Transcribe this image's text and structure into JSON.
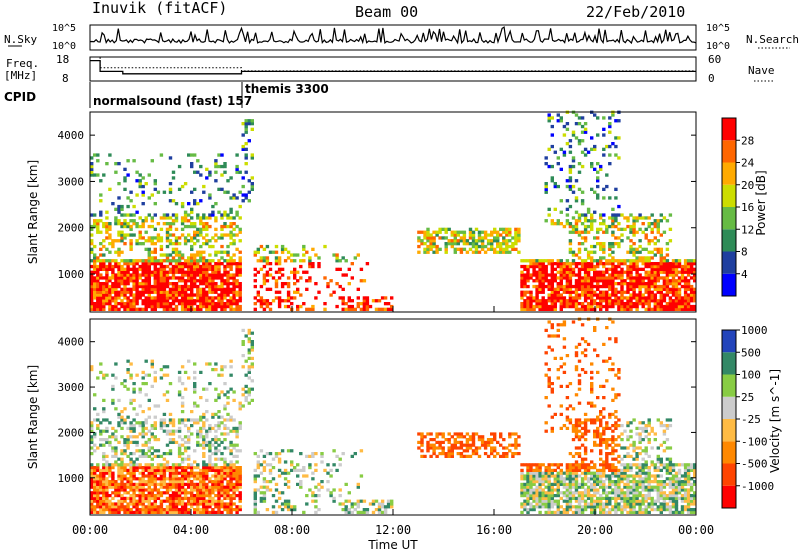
{
  "header": {
    "station": "Inuvik (fitACF)",
    "beam": "Beam 00",
    "date": "22/Feb/2010"
  },
  "colors": {
    "power": [
      "#0000ff",
      "#1f3f9f",
      "#2e8b57",
      "#66bb44",
      "#ccdd00",
      "#ffaa00",
      "#ff6600",
      "#ff0000"
    ],
    "velocity": [
      "#ff0000",
      "#ff4400",
      "#ff8800",
      "#ffbb44",
      "#cccccc",
      "#88cc44",
      "#338866",
      "#2244bb"
    ]
  },
  "top_panels": {
    "nsky": {
      "label": "N.Sky",
      "tick_top": "10^5",
      "tick_bottom": "10^0",
      "right_label": "N.Search",
      "right_tick_top": "10^5",
      "right_tick_bottom": "10^0"
    },
    "freq": {
      "label": "Freq.",
      "unit": "[MHz]",
      "tick_top": "18",
      "tick_bottom": "8",
      "right_label": "Nave",
      "right_tick_top": "60",
      "right_tick_bottom": "0",
      "series": [
        {
          "x": [
            0,
            0.4,
            0.4,
            1.3,
            1.3,
            6.0,
            6.0,
            24.0
          ],
          "y": [
            16.5,
            16.5,
            12.0,
            12.0,
            11.0,
            11.0,
            12.0,
            12.0
          ]
        },
        {
          "x": [
            0,
            0.4,
            0.4,
            6.0,
            6.0,
            24.0
          ],
          "y": [
            18,
            18,
            13.5,
            13.5,
            12.2,
            12.2
          ]
        }
      ]
    },
    "cpid": {
      "label": "CPID",
      "modes": [
        {
          "name": "normalsound (fast) 157",
          "start_hour": 0.0
        },
        {
          "name": "themis 3300",
          "start_hour": 6.3
        }
      ]
    }
  },
  "chart_data": [
    {
      "type": "heatmap",
      "title": "",
      "ylabel": "Slant Range [km]",
      "xlabel": "",
      "xlim": [
        0,
        24
      ],
      "ylim": [
        180,
        4500
      ],
      "yticks": [
        1000,
        2000,
        3000,
        4000
      ],
      "colorbar": {
        "label": "Power [dB]",
        "ticks": [
          "4",
          "8",
          "12",
          "16",
          "20",
          "24",
          "28"
        ],
        "range": [
          0,
          32
        ]
      }
    },
    {
      "type": "heatmap",
      "title": "",
      "ylabel": "Slant Range [km]",
      "xlabel": "Time UT",
      "xlim": [
        0,
        24
      ],
      "ylim": [
        180,
        4500
      ],
      "yticks": [
        1000,
        2000,
        3000,
        4000
      ],
      "xticks": [
        "00:00",
        "04:00",
        "08:00",
        "12:00",
        "16:00",
        "20:00",
        "00:00"
      ],
      "colorbar": {
        "label": "Velocity [m s^-1]",
        "ticks": [
          "-1000",
          "-500",
          "-100",
          "-25",
          "25",
          "100",
          "500",
          "1000"
        ]
      }
    }
  ]
}
